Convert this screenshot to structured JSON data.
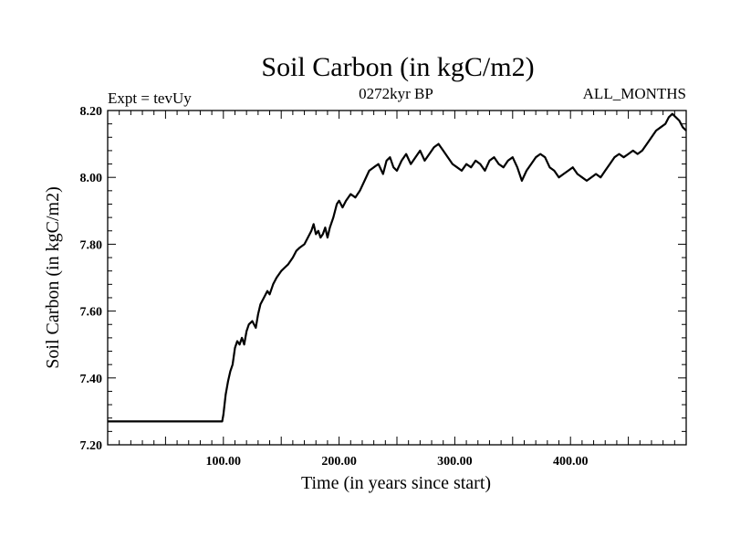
{
  "chart_data": {
    "type": "line",
    "title": "Soil Carbon (in kgC/m2)",
    "subtitle": "0272kyr BP",
    "left_note": "Expt = tevUy",
    "right_note": "ALL_MONTHS",
    "xlabel": "Time (in years since start)",
    "ylabel": "Soil Carbon (in kgC/m2)",
    "xlim": [
      0,
      500
    ],
    "ylim": [
      7.2,
      8.2
    ],
    "x_ticks": [
      100,
      200,
      300,
      400
    ],
    "x_tick_labels": [
      "100.00",
      "200.00",
      "300.00",
      "400.00"
    ],
    "y_ticks": [
      7.2,
      7.4,
      7.6,
      7.8,
      8.0,
      8.2
    ],
    "y_tick_labels": [
      "7.20",
      "7.40",
      "7.60",
      "7.80",
      "8.00",
      "8.20"
    ],
    "series": [
      {
        "color": "#000000",
        "x": [
          0,
          99,
          100,
          102,
          104,
          106,
          108,
          110,
          112,
          114,
          116,
          118,
          120,
          122,
          125,
          128,
          130,
          132,
          135,
          138,
          140,
          143,
          146,
          150,
          153,
          156,
          160,
          163,
          166,
          170,
          173,
          176,
          178,
          180,
          182,
          184,
          186,
          188,
          190,
          192,
          195,
          198,
          200,
          203,
          206,
          210,
          214,
          218,
          222,
          226,
          230,
          234,
          238,
          241,
          244,
          247,
          250,
          254,
          258,
          262,
          266,
          270,
          274,
          278,
          282,
          286,
          290,
          294,
          298,
          302,
          306,
          310,
          314,
          318,
          322,
          326,
          330,
          334,
          338,
          342,
          346,
          350,
          354,
          358,
          362,
          366,
          370,
          374,
          378,
          382,
          386,
          390,
          394,
          398,
          402,
          406,
          410,
          414,
          418,
          422,
          426,
          430,
          434,
          438,
          442,
          446,
          450,
          454,
          458,
          462,
          466,
          470,
          474,
          478,
          482,
          485,
          488,
          491,
          494,
          497,
          500
        ],
        "values": [
          7.27,
          7.27,
          7.29,
          7.35,
          7.39,
          7.42,
          7.44,
          7.49,
          7.51,
          7.5,
          7.52,
          7.5,
          7.54,
          7.56,
          7.57,
          7.55,
          7.59,
          7.62,
          7.64,
          7.66,
          7.65,
          7.68,
          7.7,
          7.72,
          7.73,
          7.74,
          7.76,
          7.78,
          7.79,
          7.8,
          7.82,
          7.84,
          7.86,
          7.83,
          7.84,
          7.82,
          7.83,
          7.85,
          7.82,
          7.85,
          7.88,
          7.92,
          7.93,
          7.91,
          7.93,
          7.95,
          7.94,
          7.96,
          7.99,
          8.02,
          8.03,
          8.04,
          8.01,
          8.05,
          8.06,
          8.03,
          8.02,
          8.05,
          8.07,
          8.04,
          8.06,
          8.08,
          8.05,
          8.07,
          8.09,
          8.1,
          8.08,
          8.06,
          8.04,
          8.03,
          8.02,
          8.04,
          8.03,
          8.05,
          8.04,
          8.02,
          8.05,
          8.06,
          8.04,
          8.03,
          8.05,
          8.06,
          8.03,
          7.99,
          8.02,
          8.04,
          8.06,
          8.07,
          8.06,
          8.03,
          8.02,
          8.0,
          8.01,
          8.02,
          8.03,
          8.01,
          8.0,
          7.99,
          8.0,
          8.01,
          8.0,
          8.02,
          8.04,
          8.06,
          8.07,
          8.06,
          8.07,
          8.08,
          8.07,
          8.08,
          8.1,
          8.12,
          8.14,
          8.15,
          8.16,
          8.18,
          8.19,
          8.18,
          8.17,
          8.15,
          8.14
        ]
      }
    ]
  }
}
